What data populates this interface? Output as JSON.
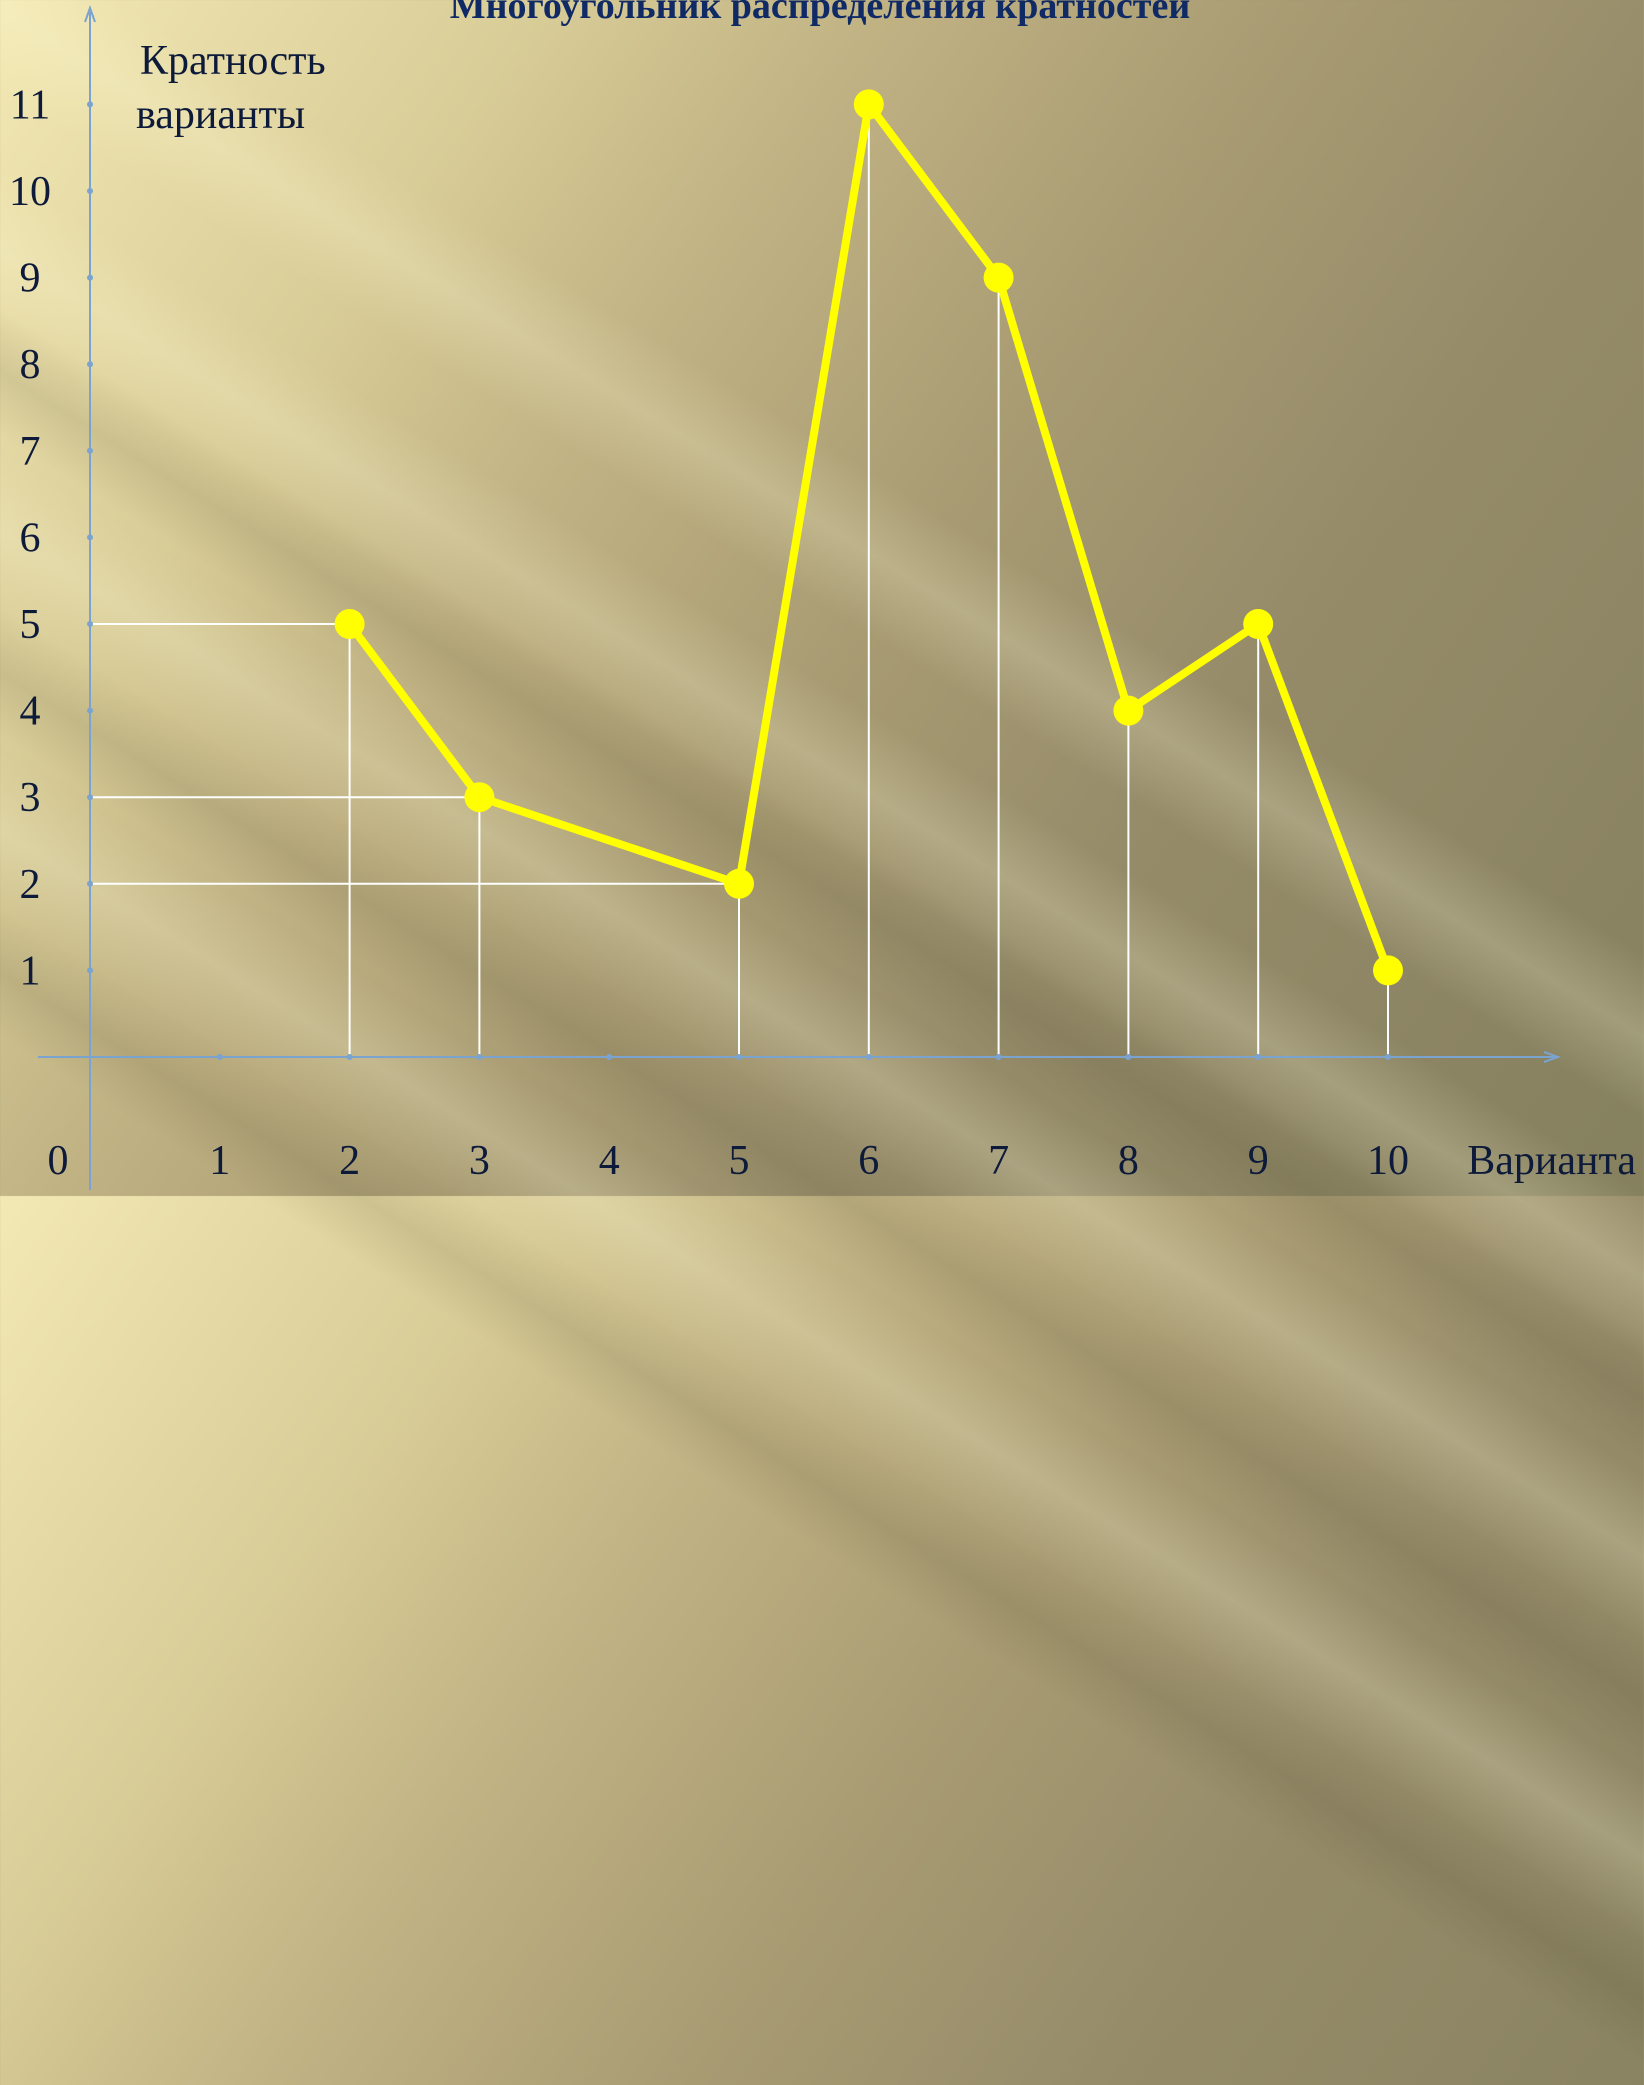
{
  "chart_data": {
    "type": "line",
    "title": "Многоугольник распределения кратностей",
    "ylabel_line1": "Кратность",
    "ylabel_line2": "варианты",
    "xlabel": "Варианта",
    "origin_label": "0",
    "x_ticks": [
      "1",
      "2",
      "3",
      "4",
      "5",
      "6",
      "7",
      "8",
      "9",
      "10"
    ],
    "y_ticks": [
      "1",
      "2",
      "3",
      "4",
      "5",
      "6",
      "7",
      "8",
      "9",
      "10",
      "11"
    ],
    "xlim": [
      0,
      11
    ],
    "ylim": [
      0,
      11
    ],
    "series": [
      {
        "x": [
          2,
          3,
          5,
          6,
          7,
          8,
          9,
          10
        ],
        "y": [
          5,
          3,
          2,
          11,
          9,
          4,
          5,
          1
        ]
      }
    ],
    "line_color": "#ffff00",
    "guide_color": "#ffffff",
    "axis_color": "#7aa3cf"
  }
}
